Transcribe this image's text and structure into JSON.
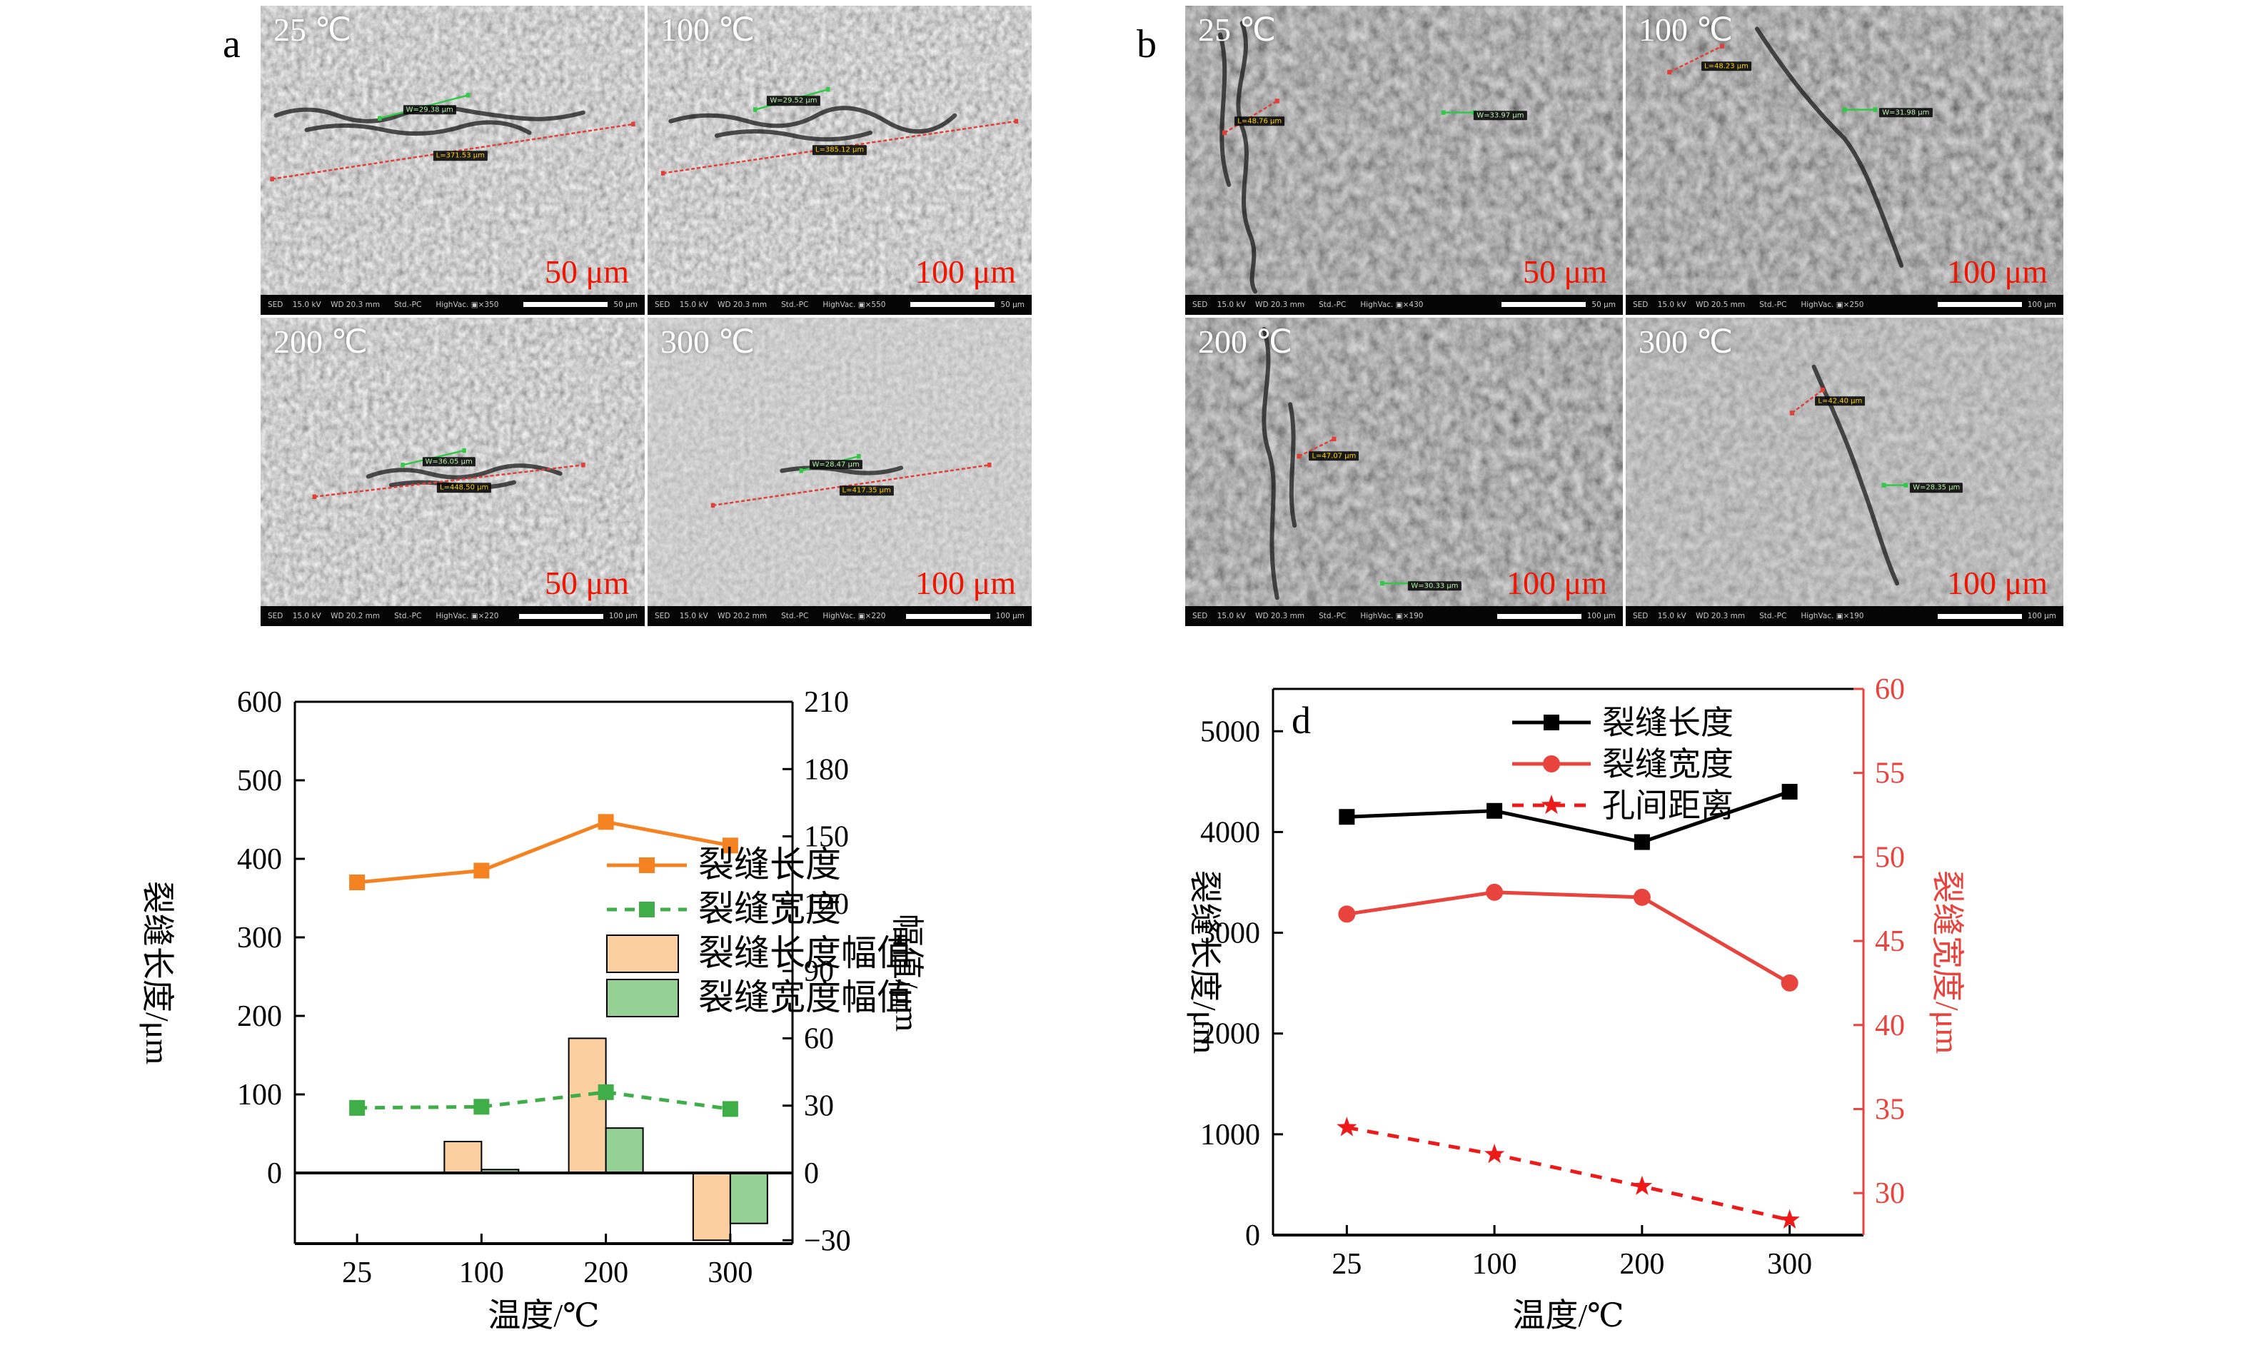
{
  "figure": {
    "colors": {
      "scale_text_red": "#ee1602",
      "measure_red": "#e04038",
      "measure_green": "#34c84a",
      "label_yellow": "#ffd400",
      "orange_line": "#F58220",
      "orange_bar": "#FBCFA0",
      "green_line": "#3FAE49",
      "green_bar": "#95D194",
      "black_line": "#000000",
      "red_line": "#E8433C",
      "red_dash": "#EE1A1A"
    },
    "panels": [
      {
        "letter": "a",
        "tiles": [
          {
            "temp": "25 ℃",
            "scale": "50 μm",
            "texture": "a",
            "info": "SED    15.0 kV    WD 20.3 mm      Std.-PC      HighVac. ▣×350",
            "info_scale": "50 μm",
            "crack": [
              "M4,38 Q12,34 20,38 T36,38 T52,36 T68,39 T84,37",
              "M12,43 Q22,40 32,43 T52,42 T70,44"
            ],
            "annotations": [
              {
                "kind": "width",
                "text": "W=29.38 μm",
                "style": "green",
                "line": [
                  31,
                  39,
                  54,
                  31
                ],
                "label": [
                  44,
                  36
                ]
              },
              {
                "kind": "length",
                "text": "L=371.53 μm",
                "style": "yellow",
                "line": [
                  3,
                  60,
                  97,
                  41
                ],
                "label": [
                  52,
                  52
                ]
              }
            ]
          },
          {
            "temp": "100 ℃",
            "scale": "100 μm",
            "texture": "a",
            "info": "SED    15.0 kV    WD 20.3 mm      Std.-PC      HighVac. ▣×550",
            "info_scale": "50 μm",
            "crack": [
              "M6,40 Q16,36 26,40 T44,38 T62,40 T80,38",
              "M18,45 Q28,42 38,45 T58,44"
            ],
            "annotations": [
              {
                "kind": "width",
                "text": "W=29.52 μm",
                "style": "green",
                "line": [
                  28,
                  36,
                  47,
                  29
                ],
                "label": [
                  38,
                  33
                ]
              },
              {
                "kind": "length",
                "text": "L=385.12 μm",
                "style": "yellow",
                "line": [
                  4,
                  58,
                  96,
                  40
                ],
                "label": [
                  50,
                  50
                ]
              }
            ]
          },
          {
            "temp": "200 ℃",
            "scale": "50 μm",
            "texture": "a",
            "info": "SED    15.0 kV    WD 20.2 mm      Std.-PC      HighVac. ▣×220",
            "info_scale": "100 μm",
            "crack": [
              "M28,55 Q36,51 44,54 T60,53 T78,54",
              "M34,58 Q42,56 50,58 T66,57"
            ],
            "annotations": [
              {
                "kind": "width",
                "text": "W=36.05 μm",
                "style": "green",
                "line": [
                  37,
                  51,
                  53,
                  46
                ],
                "label": [
                  49,
                  50
                ]
              },
              {
                "kind": "length",
                "text": "L=448.50 μm",
                "style": "yellow",
                "line": [
                  14,
                  62,
                  84,
                  51
                ],
                "label": [
                  53,
                  59
                ]
              }
            ]
          },
          {
            "temp": "300 ℃",
            "scale": "100 μm",
            "texture": "a-light",
            "info": "SED    15.0 kV    WD 20.2 mm      Std.-PC      HighVac. ▣×220",
            "info_scale": "100 μm",
            "crack": [
              "M35,53 Q43,51 51,53 T66,52"
            ],
            "annotations": [
              {
                "kind": "width",
                "text": "W=28.47 μm",
                "style": "green",
                "line": [
                  40,
                  53,
                  55,
                  48
                ],
                "label": [
                  49,
                  51
                ]
              },
              {
                "kind": "length",
                "text": "L=417.35 μm",
                "style": "yellow",
                "line": [
                  17,
                  65,
                  89,
                  51
                ],
                "label": [
                  57,
                  60
                ]
              }
            ]
          }
        ]
      },
      {
        "letter": "b",
        "tiles": [
          {
            "temp": "25 ℃",
            "scale": "50 μm",
            "texture": "b",
            "info": "SED    15.0 kV    WD 20.3 mm      Std.-PC      HighVac. ▣×430",
            "info_scale": "50 μm",
            "crack": [
              "M13,6 C16,18 10,30 13,42 C16,54 11,66 15,80 C17,88 14,94 16,99",
              "M8,10 C11,26 6,44 10,62"
            ],
            "annotations": [
              {
                "kind": "length",
                "text": "L=48.76 μm",
                "style": "yellow",
                "line": [
                  9,
                  44,
                  21,
                  33
                ],
                "label": [
                  17,
                  40
                ]
              },
              {
                "kind": "width",
                "text": "W=33.97 μm",
                "style": "green",
                "line": [
                  59,
                  37,
                  66,
                  37
                ],
                "label": [
                  72,
                  38
                ]
              }
            ]
          },
          {
            "temp": "100 ℃",
            "scale": "100 μm",
            "texture": "b",
            "info": "SED    15.0 kV    WD 20.5 mm      Std.-PC      HighVac. ▣×250",
            "info_scale": "100 μm",
            "crack": [
              "M30,8 C36,22 42,34 50,46 C55,56 58,70 63,90"
            ],
            "annotations": [
              {
                "kind": "length",
                "text": "L=48.23 μm",
                "style": "yellow",
                "line": [
                  10,
                  23,
                  22,
                  14
                ],
                "label": [
                  23,
                  21
                ]
              },
              {
                "kind": "width",
                "text": "W=31.98 μm",
                "style": "green",
                "line": [
                  50,
                  36,
                  57,
                  36
                ],
                "label": [
                  64,
                  37
                ]
              }
            ]
          },
          {
            "temp": "200 ℃",
            "scale": "100 μm",
            "texture": "b",
            "info": "SED    15.0 kV    WD 20.3 mm      Std.-PC      HighVac. ▣×190",
            "info_scale": "100 μm",
            "crack": [
              "M18,4 C21,18 16,32 19,46 C22,60 18,74 21,97",
              "M24,30 C26,44 23,58 25,72"
            ],
            "annotations": [
              {
                "kind": "length",
                "text": "L=47.07 μm",
                "style": "yellow",
                "line": [
                  26,
                  48,
                  34,
                  42
                ],
                "label": [
                  34,
                  48
                ]
              },
              {
                "kind": "width",
                "text": "W=30.33 μm",
                "style": "green",
                "line": [
                  45,
                  92,
                  52,
                  92
                ],
                "label": [
                  57,
                  93
                ]
              }
            ]
          },
          {
            "temp": "300 ℃",
            "scale": "100 μm",
            "texture": "b-light",
            "info": "SED    15.0 kV    WD 20.3 mm      Std.-PC      HighVac. ▣×190",
            "info_scale": "100 μm",
            "crack": [
              "M43,17 C47,31 51,44 54,58 C57,70 59,82 62,92"
            ],
            "annotations": [
              {
                "kind": "length",
                "text": "L=42.40 μm",
                "style": "yellow",
                "line": [
                  38,
                  33,
                  45,
                  25
                ],
                "label": [
                  49,
                  29
                ]
              },
              {
                "kind": "width",
                "text": "W=28.35 μm",
                "style": "green",
                "line": [
                  59,
                  58,
                  64,
                  58
                ],
                "label": [
                  71,
                  59
                ]
              }
            ]
          }
        ]
      }
    ],
    "charts": [
      {
        "id": "c",
        "letter": "",
        "xlabel": "温度/℃",
        "x_ticks": [
          "25",
          "100",
          "200",
          "300"
        ],
        "left_axis": {
          "label": "裂缝长度/μm",
          "min": -90,
          "max": 600,
          "ticks": [
            0,
            100,
            200,
            300,
            400,
            500,
            600
          ],
          "color": "#000000"
        },
        "right_axis": {
          "label": "幅值/μm",
          "min": -31.5,
          "max": 210,
          "ticks": [
            -30,
            0,
            30,
            60,
            90,
            120,
            150,
            180,
            210
          ],
          "color": "#000000"
        },
        "zero_line": true,
        "series": [
          {
            "name": "裂缝长度",
            "type": "line",
            "axis": "left",
            "color": "#F58220",
            "marker": "square",
            "dash": "",
            "values": [
              370,
              385,
              447,
              417
            ]
          },
          {
            "name": "裂缝宽度",
            "type": "line",
            "axis": "right",
            "color": "#3FAE49",
            "marker": "square",
            "dash": "14 11",
            "values": [
              29,
              29.5,
              36,
              28.5
            ]
          },
          {
            "name": "裂缝长度幅值",
            "type": "bar",
            "axis": "right",
            "color": "#FBCFA0",
            "values": [
              0,
              14,
              60,
              -30
            ]
          },
          {
            "name": "裂缝宽度幅值",
            "type": "bar",
            "axis": "right",
            "color": "#95D194",
            "values": [
              0,
              1.5,
              20,
              -22.5
            ]
          }
        ]
      },
      {
        "id": "d",
        "letter": "d",
        "xlabel": "温度/℃",
        "x_ticks": [
          "25",
          "100",
          "200",
          "300"
        ],
        "left_axis": {
          "label": "裂缝长度/μm",
          "min": 0,
          "max": 5420,
          "ticks": [
            0,
            1000,
            2000,
            3000,
            4000,
            5000
          ],
          "color": "#000000"
        },
        "right_axis": {
          "label": "裂缝宽度/μm",
          "min": 27.5,
          "max": 60,
          "ticks": [
            30,
            35,
            40,
            45,
            50,
            55,
            60
          ],
          "color": "#E8433C"
        },
        "zero_line": false,
        "series": [
          {
            "name": "裂缝长度",
            "type": "line",
            "axis": "left",
            "color": "#000000",
            "marker": "square",
            "dash": "",
            "values": [
              4150,
              4210,
              3900,
              4400
            ]
          },
          {
            "name": "裂缝宽度",
            "type": "line",
            "axis": "right",
            "color": "#E8433C",
            "marker": "circle",
            "dash": "",
            "values": [
              46.6,
              47.9,
              47.6,
              42.5
            ]
          },
          {
            "name": "孔间距离",
            "type": "line",
            "axis": "right",
            "color": "#EE1A1A",
            "marker": "star",
            "dash": "16 13",
            "values": [
              33.9,
              32.3,
              30.4,
              28.4
            ]
          }
        ]
      }
    ]
  },
  "chart_data": [
    {
      "type": "line",
      "panel": "c",
      "categories": [
        25,
        100,
        200,
        300
      ],
      "series": [
        {
          "name": "裂缝长度",
          "type": "line",
          "axis": "left",
          "values": [
            370,
            385,
            447,
            417
          ]
        },
        {
          "name": "裂缝宽度",
          "type": "line",
          "axis": "right",
          "values": [
            29,
            29.5,
            36,
            28.5
          ]
        },
        {
          "name": "裂缝长度幅值",
          "type": "bar",
          "axis": "right",
          "values": [
            0,
            14,
            60,
            -30
          ]
        },
        {
          "name": "裂缝宽度幅值",
          "type": "bar",
          "axis": "right",
          "values": [
            0,
            1.5,
            20,
            -22.5
          ]
        }
      ],
      "title": "",
      "xlabel": "温度/℃",
      "ylabel_left": "裂缝长度/μm",
      "ylabel_right": "幅值/μm",
      "ylim_left": [
        -90,
        600
      ],
      "ylim_right": [
        -31.5,
        210
      ],
      "legend_position": "center-right",
      "grid": false
    },
    {
      "type": "line",
      "panel": "d",
      "categories": [
        25,
        100,
        200,
        300
      ],
      "series": [
        {
          "name": "裂缝长度",
          "type": "line",
          "axis": "left",
          "values": [
            4150,
            4210,
            3900,
            4400
          ]
        },
        {
          "name": "裂缝宽度",
          "type": "line",
          "axis": "right",
          "values": [
            46.6,
            47.9,
            47.6,
            42.5
          ]
        },
        {
          "name": "孔间距离",
          "type": "line",
          "axis": "right",
          "values": [
            33.9,
            32.3,
            30.4,
            28.4
          ]
        }
      ],
      "title": "",
      "xlabel": "温度/℃",
      "ylabel_left": "裂缝长度/μm",
      "ylabel_right": "裂缝宽度/μm",
      "ylim_left": [
        0,
        5420
      ],
      "ylim_right": [
        27.5,
        60
      ],
      "legend_position": "top-right",
      "grid": false
    }
  ]
}
